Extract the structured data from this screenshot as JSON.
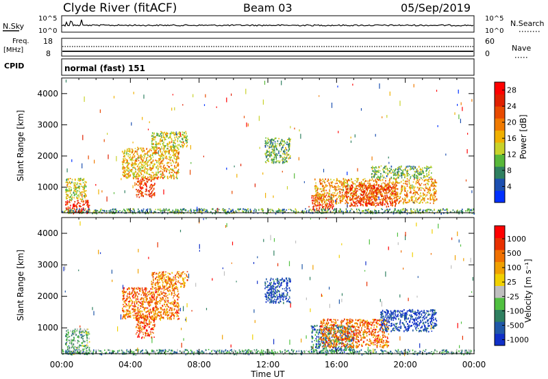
{
  "header": {
    "station": "Clyde River (fitACF)",
    "beam": "Beam 03",
    "date": "05/Sep/2019"
  },
  "top_panels": {
    "nsky_label": "N.Sky",
    "nsky_ticks": [
      "10^5",
      "10^0"
    ],
    "nsearch_label": "N.Search",
    "nsearch_ticks": [
      "10^5",
      "10^0"
    ],
    "freq_label": "Freq.",
    "freq_unit": "[MHz]",
    "freq_ticks": [
      "18",
      "8"
    ],
    "nave_label": "Nave",
    "nave_ticks": [
      "60",
      "0"
    ],
    "cpid_label": "CPID",
    "cpid_value": "normal (fast) 151"
  },
  "chart_data": [
    {
      "type": "heatmap",
      "title": "",
      "xlabel": "",
      "ylabel": "Slant Range [km]",
      "x_ticks": [
        "00:00",
        "04:00",
        "08:00",
        "12:00",
        "16:00",
        "20:00",
        "00:00"
      ],
      "xlim_hours": [
        0,
        24
      ],
      "y_ticks": [
        1000,
        2000,
        3000,
        4000
      ],
      "ylim": [
        180,
        4500
      ],
      "colorbar": {
        "label": "Power [dB]",
        "ticks": [
          "4",
          "8",
          "12",
          "16",
          "20",
          "24",
          "28"
        ],
        "colors": [
          "#0030ff",
          "#1c4fb0",
          "#2f8060",
          "#58b83a",
          "#c8d22a",
          "#f0b000",
          "#f07a00",
          "#e84a00",
          "#e02000",
          "#ff0000"
        ]
      },
      "regions": [
        {
          "t0": 0.2,
          "t1": 1.6,
          "r0": 180,
          "r1": 600,
          "level": 0.85
        },
        {
          "t0": 0.2,
          "t1": 1.4,
          "r0": 600,
          "r1": 1300,
          "level": 0.45
        },
        {
          "t0": 4.3,
          "t1": 5.4,
          "r0": 700,
          "r1": 1300,
          "level": 0.8
        },
        {
          "t0": 3.5,
          "t1": 6.8,
          "r0": 1300,
          "r1": 2300,
          "level": 0.55
        },
        {
          "t0": 5.2,
          "t1": 7.3,
          "r0": 2300,
          "r1": 2800,
          "level": 0.45
        },
        {
          "t0": 11.8,
          "t1": 13.3,
          "r0": 1800,
          "r1": 2600,
          "level": 0.35
        },
        {
          "t0": 14.5,
          "t1": 15.8,
          "r0": 250,
          "r1": 800,
          "level": 0.8
        },
        {
          "t0": 14.7,
          "t1": 21.8,
          "r0": 500,
          "r1": 1300,
          "level": 0.6
        },
        {
          "t0": 16.5,
          "t1": 19.5,
          "r0": 400,
          "r1": 1100,
          "level": 0.8
        },
        {
          "t0": 18.0,
          "t1": 21.5,
          "r0": 1300,
          "r1": 1700,
          "level": 0.35
        },
        {
          "t0": 0.0,
          "t1": 24.0,
          "r0": 180,
          "r1": 330,
          "level": 0.3
        }
      ]
    },
    {
      "type": "heatmap",
      "title": "",
      "xlabel": "Time UT",
      "ylabel": "Slant Range [km]",
      "x_ticks": [
        "00:00",
        "04:00",
        "08:00",
        "12:00",
        "16:00",
        "20:00",
        "00:00"
      ],
      "xlim_hours": [
        0,
        24
      ],
      "y_ticks": [
        1000,
        2000,
        3000,
        4000
      ],
      "ylim": [
        180,
        4500
      ],
      "colorbar": {
        "label": "Velocity [m s⁻¹]",
        "ticks": [
          "1000",
          "500",
          "100",
          "25",
          "-25",
          "-100",
          "-500",
          "-1000"
        ],
        "colors": [
          "#1030c8",
          "#2058a8",
          "#2f8060",
          "#50c040",
          "#bfbfbf",
          "#f0d000",
          "#f0a000",
          "#f07000",
          "#e83000",
          "#ff0000"
        ]
      },
      "regions": [
        {
          "t0": 0.2,
          "t1": 1.6,
          "r0": 180,
          "r1": 1000,
          "level": 0.35
        },
        {
          "t0": 4.3,
          "t1": 5.4,
          "r0": 700,
          "r1": 1400,
          "level": 0.8
        },
        {
          "t0": 3.5,
          "t1": 6.8,
          "r0": 1300,
          "r1": 2300,
          "level": 0.75
        },
        {
          "t0": 5.2,
          "t1": 7.3,
          "r0": 2300,
          "r1": 2800,
          "level": 0.7
        },
        {
          "t0": 11.8,
          "t1": 13.3,
          "r0": 1800,
          "r1": 2600,
          "level": 0.1
        },
        {
          "t0": 14.5,
          "t1": 17.0,
          "r0": 250,
          "r1": 1100,
          "level": 0.2
        },
        {
          "t0": 15.0,
          "t1": 19.0,
          "r0": 400,
          "r1": 1300,
          "level": 0.75
        },
        {
          "t0": 18.5,
          "t1": 21.8,
          "r0": 900,
          "r1": 1600,
          "level": 0.08
        },
        {
          "t0": 0.0,
          "t1": 24.0,
          "r0": 180,
          "r1": 330,
          "level": 0.3
        }
      ]
    }
  ]
}
